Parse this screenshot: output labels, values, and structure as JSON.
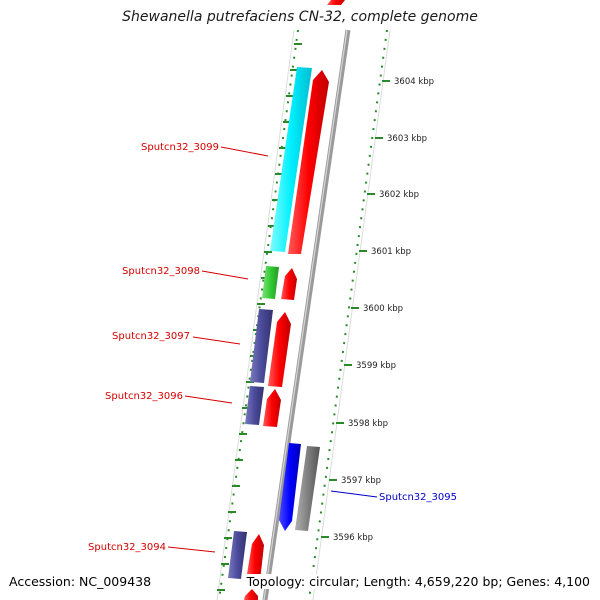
{
  "title": "Shewanella putrefaciens CN-32, complete genome",
  "footer": {
    "accession": "Accession: NC_009438",
    "topology": "Topology: circular; Length: 4,659,220 bp; Genes: 4,100"
  },
  "scale_labels": [
    "3604 kbp",
    "3603 kbp",
    "3602 kbp",
    "3601 kbp",
    "3600 kbp",
    "3599 kbp",
    "3598 kbp",
    "3597 kbp",
    "3596 kbp"
  ],
  "gene_labels": [
    {
      "text": "Sputcn32_3099",
      "color": "#d40000"
    },
    {
      "text": "Sputcn32_3098",
      "color": "#d40000"
    },
    {
      "text": "Sputcn32_3097",
      "color": "#d40000"
    },
    {
      "text": "Sputcn32_3096",
      "color": "#d40000"
    },
    {
      "text": "Sputcn32_3095",
      "color": "#0000c8"
    },
    {
      "text": "Sputcn32_3094",
      "color": "#d40000"
    }
  ],
  "colors": {
    "cds_forward": "#ff0000",
    "cds_reverse_teal": "#00ffff",
    "rna_green": "#33cc33",
    "cds_purple": "#4a4a9a",
    "cds_blue": "#0000ff",
    "cds_gray": "#808080",
    "backbone": "#8c8c8c",
    "dotted_ruler": "#2a8a2a"
  }
}
